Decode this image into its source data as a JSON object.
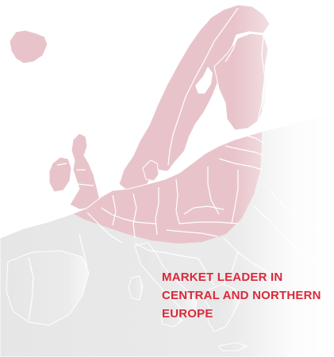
{
  "caption": {
    "line1": "MARKET LEADER IN",
    "line2": "CENTRAL AND NORTHERN",
    "line3": "EUROPE"
  },
  "colors": {
    "highlight_region": "#e8c4ca",
    "base_land": "#e6e6e6",
    "border_lines": "#ffffff",
    "caption_text": "#d72a3c"
  },
  "regions": {
    "highlighted": "Central and Northern Europe",
    "base": "Rest of Europe"
  }
}
